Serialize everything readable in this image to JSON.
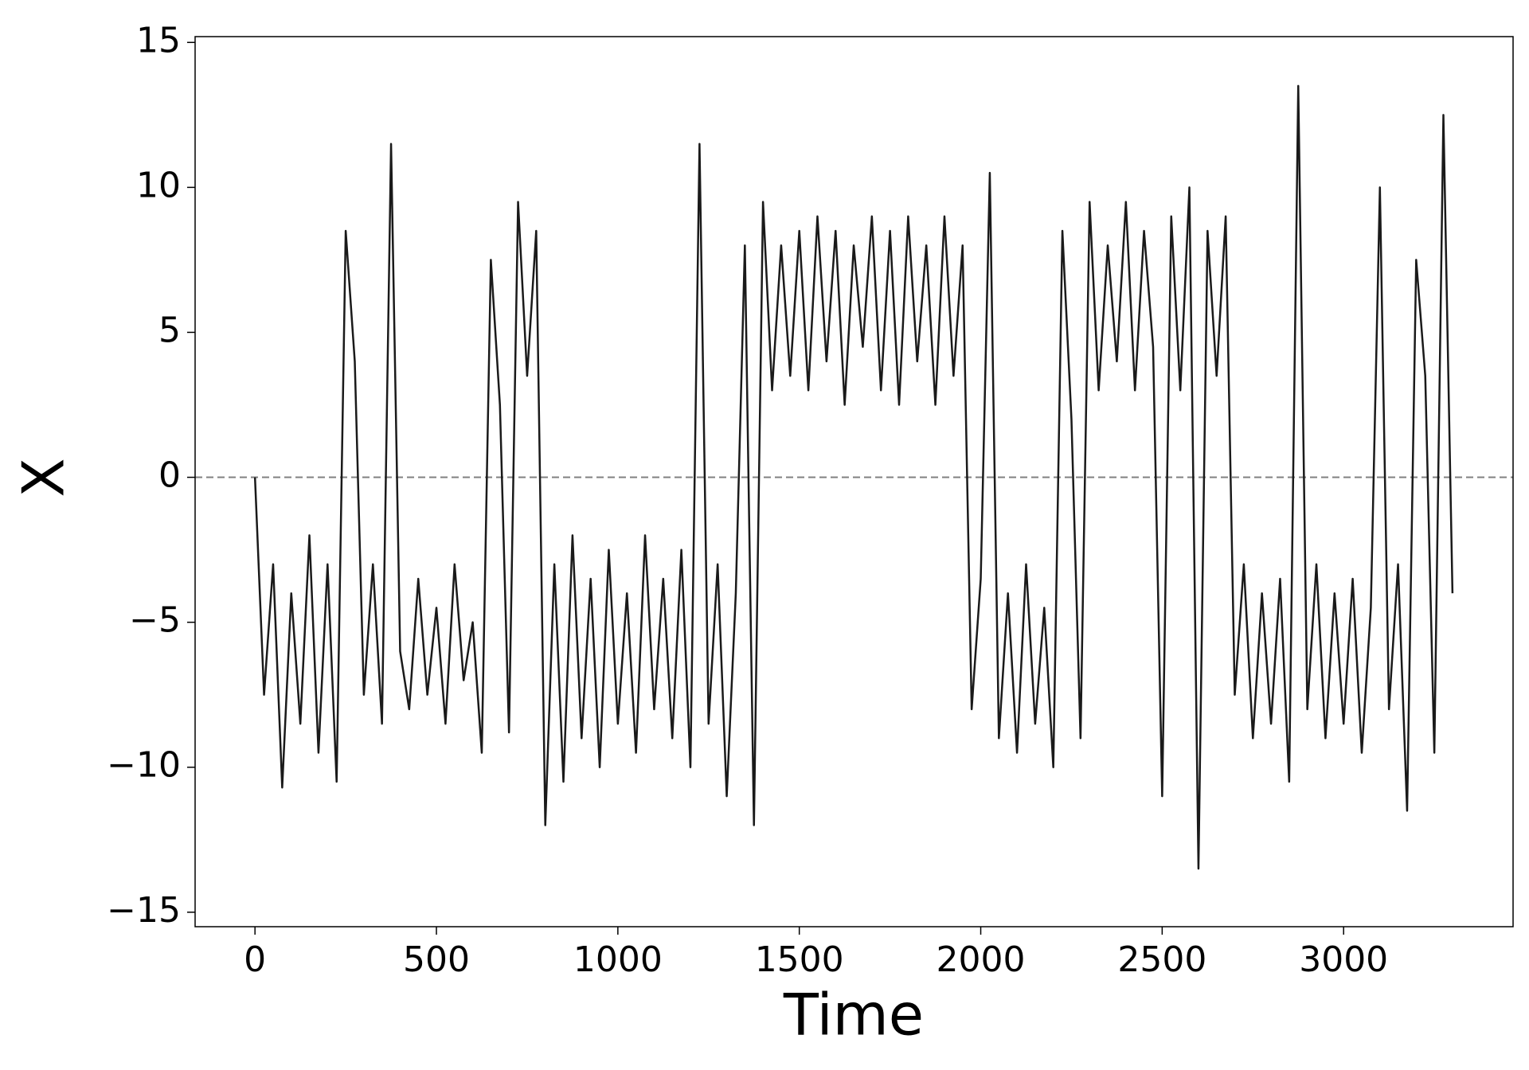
{
  "chart_data": {
    "type": "line",
    "xlabel": "Time",
    "ylabel": "X",
    "x": [
      0,
      25,
      50,
      75,
      100,
      125,
      150,
      175,
      200,
      225,
      250,
      275,
      300,
      325,
      350,
      375,
      400,
      425,
      450,
      475,
      500,
      525,
      550,
      575,
      600,
      625,
      650,
      675,
      700,
      725,
      750,
      775,
      800,
      825,
      850,
      875,
      900,
      925,
      950,
      975,
      1000,
      1025,
      1050,
      1075,
      1100,
      1125,
      1150,
      1175,
      1200,
      1225,
      1250,
      1275,
      1300,
      1325,
      1350,
      1375,
      1400,
      1425,
      1450,
      1475,
      1500,
      1525,
      1550,
      1575,
      1600,
      1625,
      1650,
      1675,
      1700,
      1725,
      1750,
      1775,
      1800,
      1825,
      1850,
      1875,
      1900,
      1925,
      1950,
      1975,
      2000,
      2025,
      2050,
      2075,
      2100,
      2125,
      2150,
      2175,
      2200,
      2225,
      2250,
      2275,
      2300,
      2325,
      2350,
      2375,
      2400,
      2425,
      2450,
      2475,
      2500,
      2525,
      2550,
      2575,
      2600,
      2625,
      2650,
      2675,
      2700,
      2725,
      2750,
      2775,
      2800,
      2825,
      2850,
      2875,
      2900,
      2925,
      2950,
      2975,
      3000,
      3025,
      3050,
      3075,
      3100,
      3125,
      3150,
      3175,
      3200,
      3225,
      3250,
      3275,
      3300
    ],
    "series": [
      {
        "color": "#1a1a1a",
        "values": [
          0,
          -7.5,
          -3,
          -10.7,
          -4,
          -8.5,
          -2,
          -9.5,
          -3,
          -10.5,
          8.5,
          4,
          -7.5,
          -3,
          -8.5,
          11.5,
          -6,
          -8,
          -3.5,
          -7.5,
          -4.5,
          -8.5,
          -3,
          -7,
          -5,
          -9.5,
          7.5,
          2.5,
          -8.8,
          9.5,
          3.5,
          8.5,
          -12,
          -3,
          -10.5,
          -2,
          -9,
          -3.5,
          -10,
          -2.5,
          -8.5,
          -4,
          -9.5,
          -2,
          -8,
          -3.5,
          -9,
          -2.5,
          -10,
          11.5,
          -8.5,
          -3,
          -11,
          -4,
          8,
          -12,
          9.5,
          3,
          8,
          3.5,
          8.5,
          3,
          9,
          4,
          8.5,
          2.5,
          8,
          4.5,
          9,
          3,
          8.5,
          2.5,
          9,
          4,
          8,
          2.5,
          9,
          3.5,
          8,
          -8,
          -3.5,
          10.5,
          -9,
          -4,
          -9.5,
          -3,
          -8.5,
          -4.5,
          -10,
          8.5,
          2,
          -9,
          9.5,
          3,
          8,
          4,
          9.5,
          3,
          8.5,
          4.5,
          -11,
          9,
          3,
          10,
          -13.5,
          8.5,
          3.5,
          9,
          -7.5,
          -3,
          -9,
          -4,
          -8.5,
          -3.5,
          -10.5,
          13.5,
          -8,
          -3,
          -9,
          -4,
          -8.5,
          -3.5,
          -9.5,
          -4.5,
          10,
          -8,
          -3,
          -11.5,
          7.5,
          3.5,
          -9.5,
          12.5,
          -4
        ]
      }
    ],
    "reference_line": {
      "value": 0,
      "color": "#808080",
      "style": "dashed"
    },
    "xlim": [
      -165,
      3467
    ],
    "ylim": [
      -15.5,
      15.2
    ],
    "xticks": [
      0,
      500,
      1000,
      1500,
      2000,
      2500,
      3000
    ],
    "yticks": [
      {
        "value": -15,
        "label": "−15"
      },
      {
        "value": -10,
        "label": "−10"
      },
      {
        "value": -5,
        "label": "−5"
      },
      0,
      5,
      10,
      15
    ],
    "grid": false
  }
}
